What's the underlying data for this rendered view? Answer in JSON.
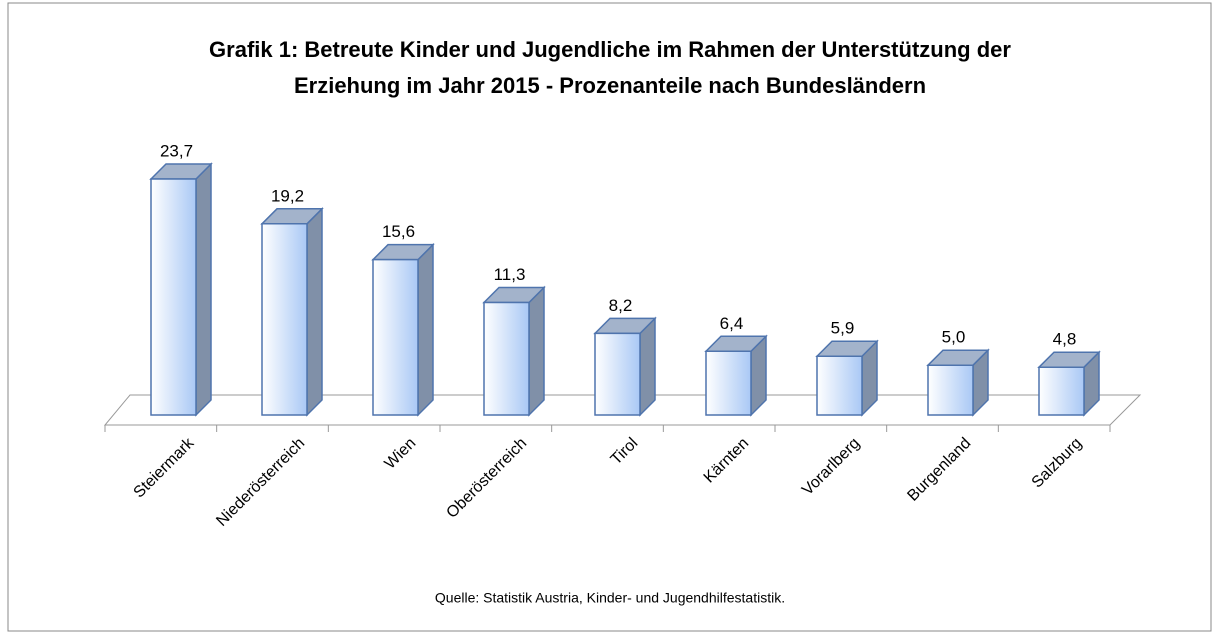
{
  "chart_data": {
    "type": "bar",
    "title": [
      "Grafik 1: Betreute Kinder und Jugendliche im Rahmen der Unterstützung der",
      "Erziehung im Jahr 2015 - Prozenanteile nach Bundesländern"
    ],
    "categories": [
      "Steiermark",
      "Niederösterreich",
      "Wien",
      "Oberösterreich",
      "Tirol",
      "Kärnten",
      "Vorarlberg",
      "Burgenland",
      "Salzburg"
    ],
    "values": [
      23.7,
      19.2,
      15.6,
      11.3,
      8.2,
      6.4,
      5.9,
      5.0,
      4.8
    ],
    "value_labels": [
      "23,7",
      "19,2",
      "15,6",
      "11,3",
      "8,2",
      "6,4",
      "5,9",
      "5,0",
      "4,8"
    ],
    "color": "#a9c8f5",
    "source": "Quelle: Statistik Austria, Kinder- und Jugendhilfestatistik."
  }
}
